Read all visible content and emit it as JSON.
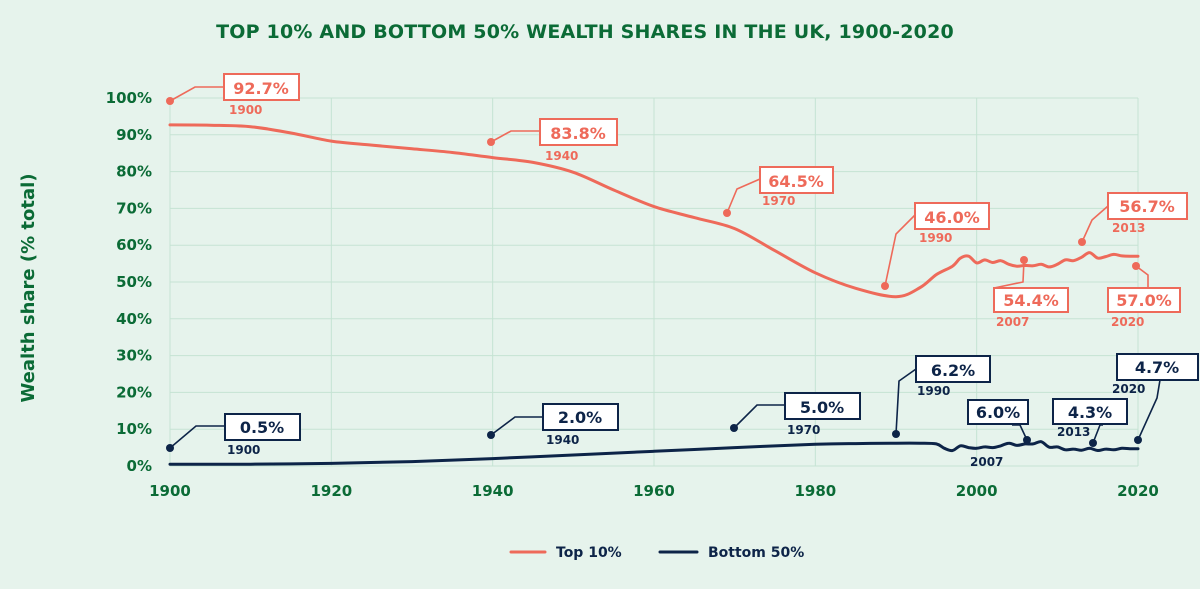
{
  "chart_data": {
    "type": "line",
    "title": "TOP 10% AND BOTTOM 50% WEALTH SHARES IN THE UK, 1900-2020",
    "xlabel": "",
    "ylabel": "Wealth share (% total)",
    "xlim": [
      1900,
      2020
    ],
    "ylim": [
      0,
      100
    ],
    "x_ticks": [
      "1900",
      "1920",
      "1940",
      "1960",
      "1980",
      "2000",
      "2020"
    ],
    "y_ticks": [
      "0%",
      "10%",
      "20%",
      "30%",
      "40%",
      "50%",
      "60%",
      "70%",
      "80%",
      "90%",
      "100%"
    ],
    "legend_position": "bottom-center",
    "series": [
      {
        "name": "Top 10%",
        "color": "#ee6a5a",
        "points": [
          [
            1900,
            92.7
          ],
          [
            1905,
            92.6
          ],
          [
            1910,
            92.2
          ],
          [
            1915,
            90.5
          ],
          [
            1920,
            88.3
          ],
          [
            1925,
            87.2
          ],
          [
            1930,
            86.2
          ],
          [
            1935,
            85.2
          ],
          [
            1940,
            83.8
          ],
          [
            1945,
            82.5
          ],
          [
            1950,
            79.8
          ],
          [
            1955,
            75
          ],
          [
            1960,
            70.5
          ],
          [
            1965,
            67.5
          ],
          [
            1970,
            64.5
          ],
          [
            1975,
            58.5
          ],
          [
            1980,
            52.5
          ],
          [
            1985,
            48.3
          ],
          [
            1990,
            46
          ],
          [
            1993,
            48.5
          ],
          [
            1995,
            52
          ],
          [
            1997,
            54.3
          ],
          [
            1998,
            56.5
          ],
          [
            1999,
            57
          ],
          [
            2000,
            55.2
          ],
          [
            2001,
            56
          ],
          [
            2002,
            55.3
          ],
          [
            2003,
            55.8
          ],
          [
            2004,
            54.8
          ],
          [
            2005,
            54.3
          ],
          [
            2006,
            54.5
          ],
          [
            2007,
            54.4
          ],
          [
            2008,
            54.8
          ],
          [
            2009,
            54.1
          ],
          [
            2010,
            54.8
          ],
          [
            2011,
            56
          ],
          [
            2012,
            55.8
          ],
          [
            2013,
            56.7
          ],
          [
            2014,
            58
          ],
          [
            2015,
            56.5
          ],
          [
            2016,
            56.9
          ],
          [
            2017,
            57.5
          ],
          [
            2018,
            57.1
          ],
          [
            2019,
            57
          ],
          [
            2020,
            57
          ]
        ]
      },
      {
        "name": "Bottom 50%",
        "color": "#0d2448",
        "points": [
          [
            1900,
            0.5
          ],
          [
            1910,
            0.5
          ],
          [
            1920,
            0.7
          ],
          [
            1930,
            1.2
          ],
          [
            1940,
            2
          ],
          [
            1950,
            3
          ],
          [
            1960,
            4
          ],
          [
            1970,
            5
          ],
          [
            1980,
            5.9
          ],
          [
            1985,
            6.1
          ],
          [
            1990,
            6.2
          ],
          [
            1993,
            6.2
          ],
          [
            1995,
            6
          ],
          [
            1996,
            4.8
          ],
          [
            1997,
            4.2
          ],
          [
            1998,
            5.5
          ],
          [
            1999,
            5
          ],
          [
            2000,
            4.8
          ],
          [
            2001,
            5.2
          ],
          [
            2002,
            5
          ],
          [
            2003,
            5.5
          ],
          [
            2004,
            6.2
          ],
          [
            2005,
            5.6
          ],
          [
            2006,
            6
          ],
          [
            2007,
            6
          ],
          [
            2008,
            6.6
          ],
          [
            2009,
            5.1
          ],
          [
            2010,
            5.2
          ],
          [
            2011,
            4.4
          ],
          [
            2012,
            4.6
          ],
          [
            2013,
            4.3
          ],
          [
            2014,
            4.8
          ],
          [
            2015,
            4.2
          ],
          [
            2016,
            4.6
          ],
          [
            2017,
            4.4
          ],
          [
            2018,
            4.8
          ],
          [
            2019,
            4.7
          ],
          [
            2020,
            4.7
          ]
        ]
      }
    ],
    "annotations": [
      {
        "series": "Top 10%",
        "value": "92.7%",
        "year": "1900"
      },
      {
        "series": "Top 10%",
        "value": "83.8%",
        "year": "1940"
      },
      {
        "series": "Top 10%",
        "value": "64.5%",
        "year": "1970"
      },
      {
        "series": "Top 10%",
        "value": "46.0%",
        "year": "1990"
      },
      {
        "series": "Top 10%",
        "value": "54.4%",
        "year": "2007"
      },
      {
        "series": "Top 10%",
        "value": "56.7%",
        "year": "2013"
      },
      {
        "series": "Top 10%",
        "value": "57.0%",
        "year": "2020"
      },
      {
        "series": "Bottom 50%",
        "value": "0.5%",
        "year": "1900"
      },
      {
        "series": "Bottom 50%",
        "value": "2.0%",
        "year": "1940"
      },
      {
        "series": "Bottom 50%",
        "value": "5.0%",
        "year": "1970"
      },
      {
        "series": "Bottom 50%",
        "value": "6.2%",
        "year": "1990"
      },
      {
        "series": "Bottom 50%",
        "value": "6.0%",
        "year": "2007"
      },
      {
        "series": "Bottom 50%",
        "value": "4.3%",
        "year": "2013"
      },
      {
        "series": "Bottom 50%",
        "value": "4.7%",
        "year": "2020"
      }
    ]
  }
}
